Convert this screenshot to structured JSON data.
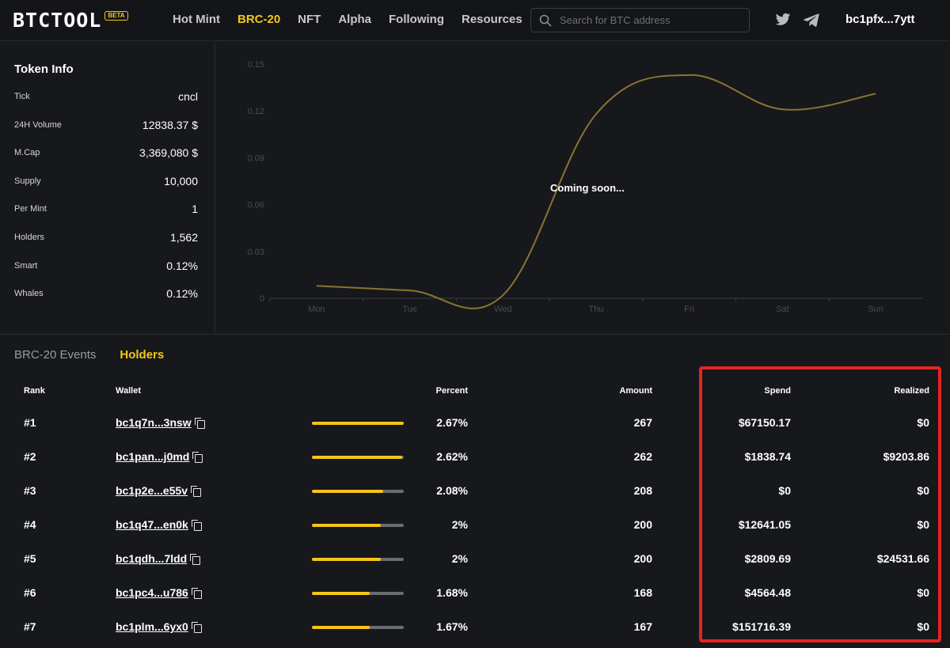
{
  "header": {
    "logo_text": "BTCTOOL",
    "beta_label": "BETA",
    "nav": [
      {
        "label": "Hot Mint",
        "active": false
      },
      {
        "label": "BRC-20",
        "active": true
      },
      {
        "label": "NFT",
        "active": false
      },
      {
        "label": "Alpha",
        "active": false
      },
      {
        "label": "Following",
        "active": false
      },
      {
        "label": "Resources",
        "active": false
      }
    ],
    "search_placeholder": "Search for BTC address",
    "wallet": "bc1pfx...7ytt"
  },
  "token_info": {
    "title": "Token Info",
    "rows": [
      {
        "label": "Tick",
        "value": "cncl"
      },
      {
        "label": "24H Volume",
        "value": "12838.37 $"
      },
      {
        "label": "M.Cap",
        "value": "3,369,080 $"
      },
      {
        "label": "Supply",
        "value": "10,000"
      },
      {
        "label": "Per Mint",
        "value": "1"
      },
      {
        "label": "Holders",
        "value": "1,562"
      },
      {
        "label": "Smart",
        "value": "0.12%"
      },
      {
        "label": "Whales",
        "value": "0.12%"
      }
    ]
  },
  "chart_data": {
    "type": "line",
    "categories": [
      "Mon",
      "Tue",
      "Wed",
      "Thu",
      "Fri",
      "Sat",
      "Sun"
    ],
    "values": [
      0.008,
      0.005,
      0.002,
      0.118,
      0.143,
      0.121,
      0.131
    ],
    "yticks": [
      "0",
      "0.03",
      "0.06",
      "0.09",
      "0.12",
      "0.15"
    ],
    "ylim": [
      0,
      0.15
    ],
    "overlay_text": "Coming soon...",
    "line_color": "#8a7430",
    "title": "",
    "xlabel": "",
    "ylabel": ""
  },
  "tabs": [
    {
      "label": "BRC-20 Events",
      "active": false
    },
    {
      "label": "Holders",
      "active": true
    }
  ],
  "table": {
    "headers": {
      "rank": "Rank",
      "wallet": "Wallet",
      "percent": "Percent",
      "amount": "Amount",
      "spend": "Spend",
      "realized": "Realized"
    },
    "rows": [
      {
        "rank": "#1",
        "wallet": "bc1q7n...3nsw",
        "percent": "2.67%",
        "fill": 1.0,
        "amount": "267",
        "spend": "$67150.17",
        "realized": "$0"
      },
      {
        "rank": "#2",
        "wallet": "bc1pan...j0md",
        "percent": "2.62%",
        "fill": 0.98,
        "amount": "262",
        "spend": "$1838.74",
        "realized": "$9203.86"
      },
      {
        "rank": "#3",
        "wallet": "bc1p2e...e55v",
        "percent": "2.08%",
        "fill": 0.78,
        "amount": "208",
        "spend": "$0",
        "realized": "$0"
      },
      {
        "rank": "#4",
        "wallet": "bc1q47...en0k",
        "percent": "2%",
        "fill": 0.75,
        "amount": "200",
        "spend": "$12641.05",
        "realized": "$0"
      },
      {
        "rank": "#5",
        "wallet": "bc1qdh...7ldd",
        "percent": "2%",
        "fill": 0.75,
        "amount": "200",
        "spend": "$2809.69",
        "realized": "$24531.66"
      },
      {
        "rank": "#6",
        "wallet": "bc1pc4...u786",
        "percent": "1.68%",
        "fill": 0.63,
        "amount": "168",
        "spend": "$4564.48",
        "realized": "$0"
      },
      {
        "rank": "#7",
        "wallet": "bc1plm...6yx0",
        "percent": "1.67%",
        "fill": 0.63,
        "amount": "167",
        "spend": "$151716.39",
        "realized": "$0"
      }
    ]
  },
  "colors": {
    "accent": "#f5c518",
    "highlight": "#e8241e",
    "background": "#17181c"
  }
}
